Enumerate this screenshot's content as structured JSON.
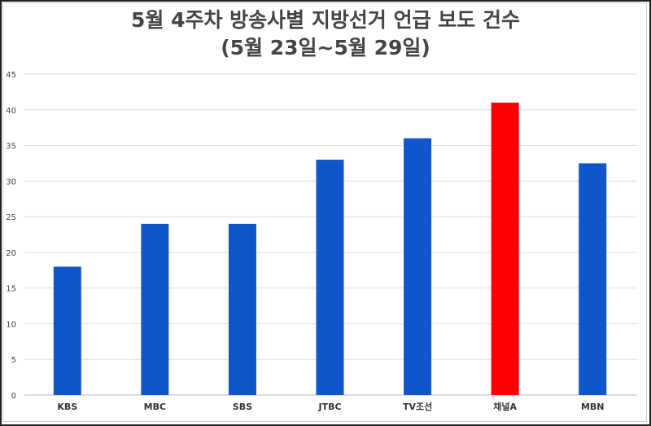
{
  "chart_data": {
    "type": "bar",
    "title": "5월 4주차 방송사별 지방선거 언급 보도 건수",
    "subtitle": "(5월 23일~5월 29일)",
    "xlabel": "",
    "ylabel": "",
    "categories": [
      "KBS",
      "MBC",
      "SBS",
      "JTBC",
      "TV조선",
      "채널A",
      "MBN"
    ],
    "values": [
      18,
      24,
      24,
      33,
      36,
      41,
      32.5
    ],
    "colors": [
      "#1155cc",
      "#1155cc",
      "#1155cc",
      "#1155cc",
      "#1155cc",
      "#ff0000",
      "#1155cc"
    ],
    "ylim": [
      0,
      45
    ],
    "yticks": [
      0,
      5,
      10,
      15,
      20,
      25,
      30,
      35,
      40,
      45
    ],
    "grid": true,
    "legend": "none"
  }
}
